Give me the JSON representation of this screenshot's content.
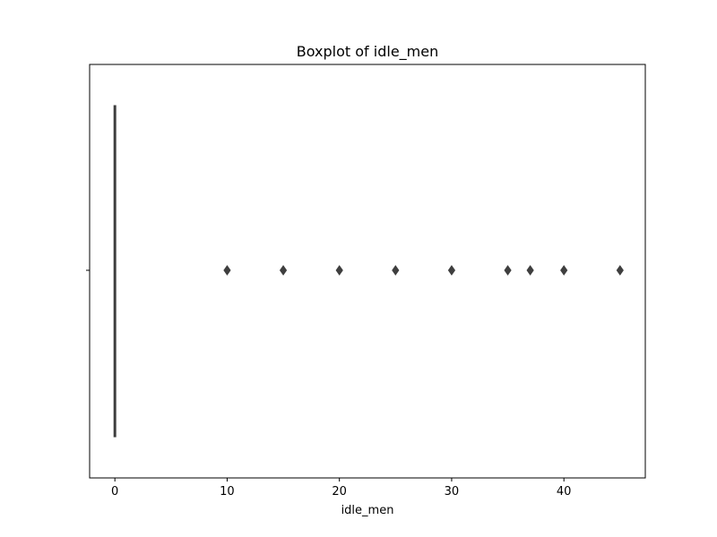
{
  "chart_data": {
    "type": "box",
    "title": "Boxplot of idle_men",
    "xlabel": "idle_men",
    "ylabel": "",
    "orientation": "horizontal",
    "xlim": [
      -2.25,
      47.25
    ],
    "x_ticks": [
      0,
      10,
      20,
      30,
      40
    ],
    "box": {
      "min": 0,
      "q1": 0,
      "median": 0,
      "q3": 0,
      "max": 0
    },
    "outliers": [
      10,
      15,
      20,
      25,
      30,
      35,
      37,
      40,
      45
    ],
    "grid": false,
    "colors": {
      "box": "#3f3f3f",
      "outlier": "#3f3f3f",
      "axes": "#000000"
    }
  }
}
